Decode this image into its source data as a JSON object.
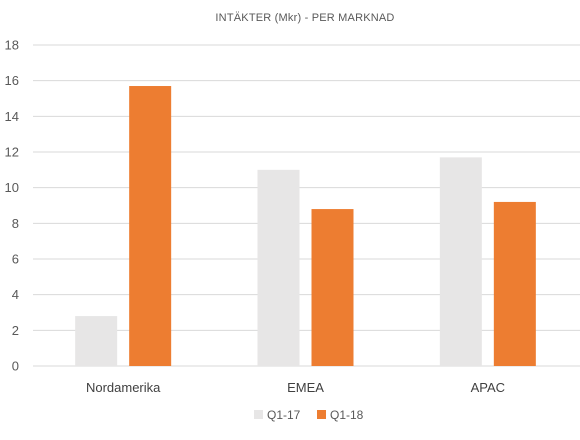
{
  "chart_data": {
    "type": "bar",
    "title": "INTÄKTER (Mkr) - PER MARKNAD",
    "xlabel": "",
    "ylabel": "",
    "categories": [
      "Nordamerika",
      "EMEA",
      "APAC"
    ],
    "series": [
      {
        "name": "Q1-17",
        "values": [
          2.8,
          11.0,
          11.7
        ],
        "color": "#e7e6e6"
      },
      {
        "name": "Q1-18",
        "values": [
          15.7,
          8.8,
          9.2
        ],
        "color": "#ed7d31"
      }
    ],
    "ylim": [
      0,
      18
    ],
    "yticks": [
      "0",
      "2",
      "4",
      "6",
      "8",
      "10",
      "12",
      "14",
      "16",
      "18"
    ],
    "grid": true,
    "legend_position": "bottom-center"
  }
}
